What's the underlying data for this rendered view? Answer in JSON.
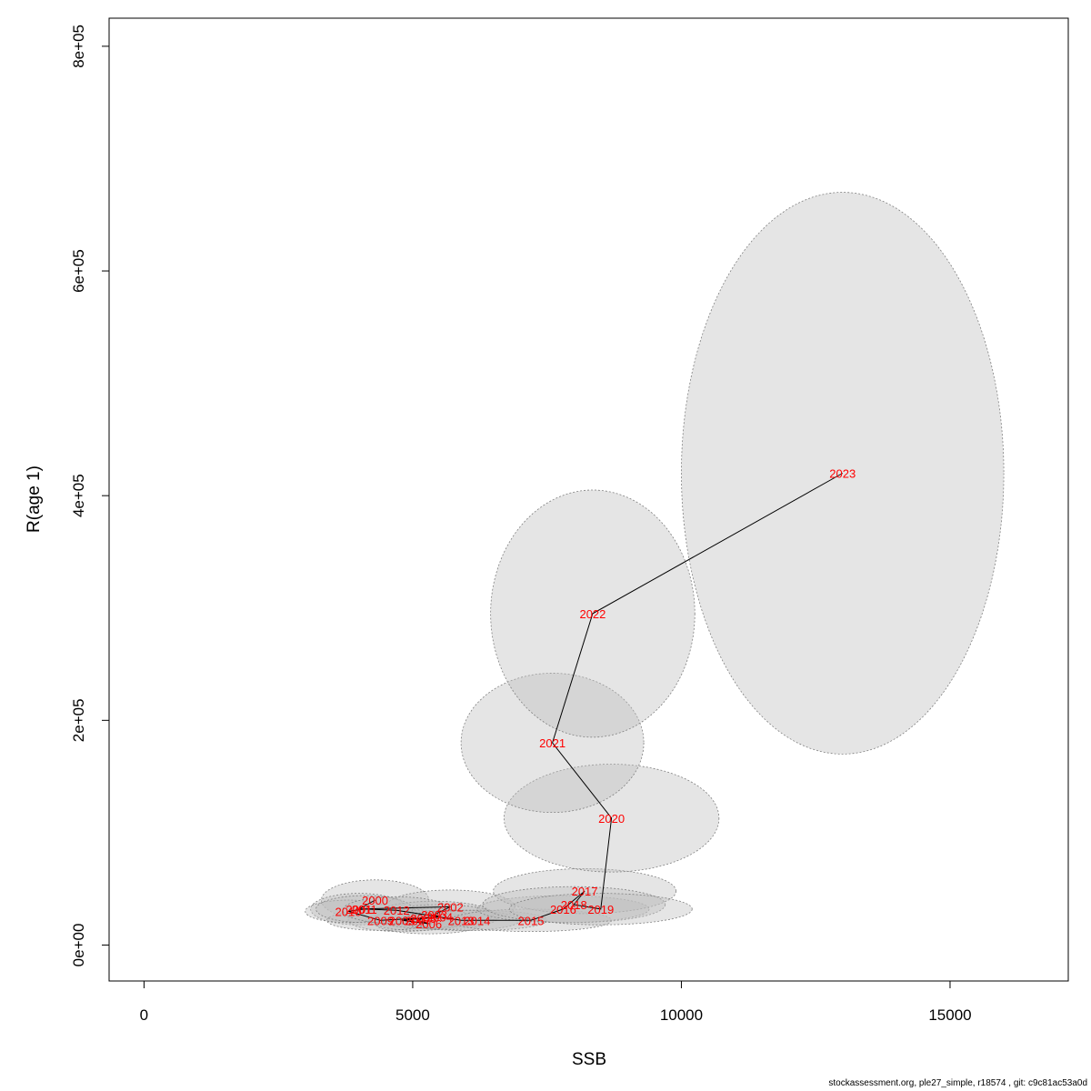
{
  "chart_data": {
    "type": "scatter",
    "xlabel": "SSB",
    "ylabel": "R(age 1)",
    "xlim": [
      -650,
      17200
    ],
    "ylim": [
      -32000,
      825000
    ],
    "x_ticks": [
      {
        "value": 0,
        "label": "0"
      },
      {
        "value": 5000,
        "label": "5000"
      },
      {
        "value": 10000,
        "label": "10000"
      },
      {
        "value": 15000,
        "label": "15000"
      }
    ],
    "y_ticks": [
      {
        "value": 0,
        "label": "0e+00"
      },
      {
        "value": 200000,
        "label": "2e+05"
      },
      {
        "value": 400000,
        "label": "4e+05"
      },
      {
        "value": 600000,
        "label": "6e+05"
      },
      {
        "value": 800000,
        "label": "8e+05"
      }
    ],
    "grid": false,
    "colors": {
      "label": "#ff0000",
      "line": "#000000",
      "ellipse_fill": "#bebebe",
      "ellipse_stroke": "#808080"
    },
    "points": [
      {
        "year": "2000",
        "x": 4300,
        "y": 40000,
        "rx": 1000,
        "ry": 18000
      },
      {
        "year": "2001",
        "x": 4000,
        "y": 32000,
        "rx": 900,
        "ry": 14000
      },
      {
        "year": "2002",
        "x": 5700,
        "y": 34000,
        "rx": 1200,
        "ry": 15000
      },
      {
        "year": "2003",
        "x": 5400,
        "y": 27000,
        "rx": 1100,
        "ry": 12000
      },
      {
        "year": "2004",
        "x": 5500,
        "y": 25000,
        "rx": 1100,
        "ry": 11000
      },
      {
        "year": "2005",
        "x": 4800,
        "y": 22000,
        "rx": 1000,
        "ry": 10000
      },
      {
        "year": "2006",
        "x": 5300,
        "y": 19000,
        "rx": 1000,
        "ry": 9000
      },
      {
        "year": "2007",
        "x": 5100,
        "y": 22000,
        "rx": 900,
        "ry": 9000
      },
      {
        "year": "2008",
        "x": 5200,
        "y": 24000,
        "rx": 900,
        "ry": 9000
      },
      {
        "year": "2009",
        "x": 4400,
        "y": 22000,
        "rx": 1000,
        "ry": 9000
      },
      {
        "year": "2010",
        "x": 3800,
        "y": 30000,
        "rx": 800,
        "ry": 10000
      },
      {
        "year": "2011",
        "x": 4100,
        "y": 32000,
        "rx": 900,
        "ry": 12000
      },
      {
        "year": "2012",
        "x": 4700,
        "y": 31000,
        "rx": 1000,
        "ry": 12000
      },
      {
        "year": "2013",
        "x": 5900,
        "y": 22000,
        "rx": 1100,
        "ry": 9000
      },
      {
        "year": "2014",
        "x": 6200,
        "y": 22000,
        "rx": 1300,
        "ry": 9000
      },
      {
        "year": "2015",
        "x": 7200,
        "y": 22000,
        "rx": 1500,
        "ry": 10000
      },
      {
        "year": "2016",
        "x": 7800,
        "y": 32000,
        "rx": 1600,
        "ry": 12000
      },
      {
        "year": "2017",
        "x": 8200,
        "y": 48000,
        "rx": 1700,
        "ry": 20000
      },
      {
        "year": "2018",
        "x": 8000,
        "y": 36000,
        "rx": 1700,
        "ry": 16000
      },
      {
        "year": "2019",
        "x": 8500,
        "y": 32000,
        "rx": 1700,
        "ry": 14000
      },
      {
        "year": "2020",
        "x": 8700,
        "y": 113000,
        "rx": 2000,
        "ry": 48000
      },
      {
        "year": "2021",
        "x": 7600,
        "y": 180000,
        "rx": 1700,
        "ry": 62000
      },
      {
        "year": "2022",
        "x": 8350,
        "y": 295000,
        "rx": 1900,
        "ry": 110000
      },
      {
        "year": "2023",
        "x": 13000,
        "y": 420000,
        "rx": 3000,
        "ry": 250000
      }
    ]
  },
  "footer": {
    "text": "stockassessment.org, ple27_simple, r18574 , git: c9c81ac53a0d"
  }
}
